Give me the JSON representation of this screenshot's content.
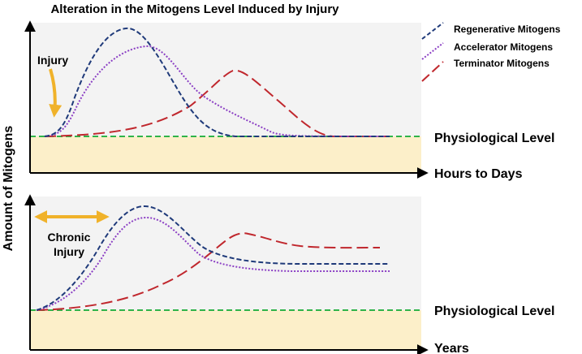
{
  "title": "Alteration in the Mitogens Level Induced by Injury",
  "y_axis_label": "Amount of Mitogens",
  "legend": [
    {
      "label": "Regenerative Mitogens",
      "color": "#1f3a7a",
      "style": "short-dash"
    },
    {
      "label": "Accelerator Mitogens",
      "color": "#8b3fc4",
      "style": "dotted"
    },
    {
      "label": "Terminator Mitogens",
      "color": "#c0272d",
      "style": "long-dash"
    }
  ],
  "colors": {
    "panel_background": "#f3f3f3",
    "baseline_fill": "#fcefc9",
    "baseline_line": "#2fb34a",
    "arrow": "#f0b22a",
    "axis": "#000000"
  },
  "panels": [
    {
      "id": "acute",
      "injury_label": "Injury",
      "baseline_label": "Physiological Level",
      "x_axis_label": "Hours to Days"
    },
    {
      "id": "chronic",
      "injury_label_lines": [
        "Chronic",
        "Injury"
      ],
      "baseline_label": "Physiological Level",
      "x_axis_label": "Years"
    }
  ]
}
